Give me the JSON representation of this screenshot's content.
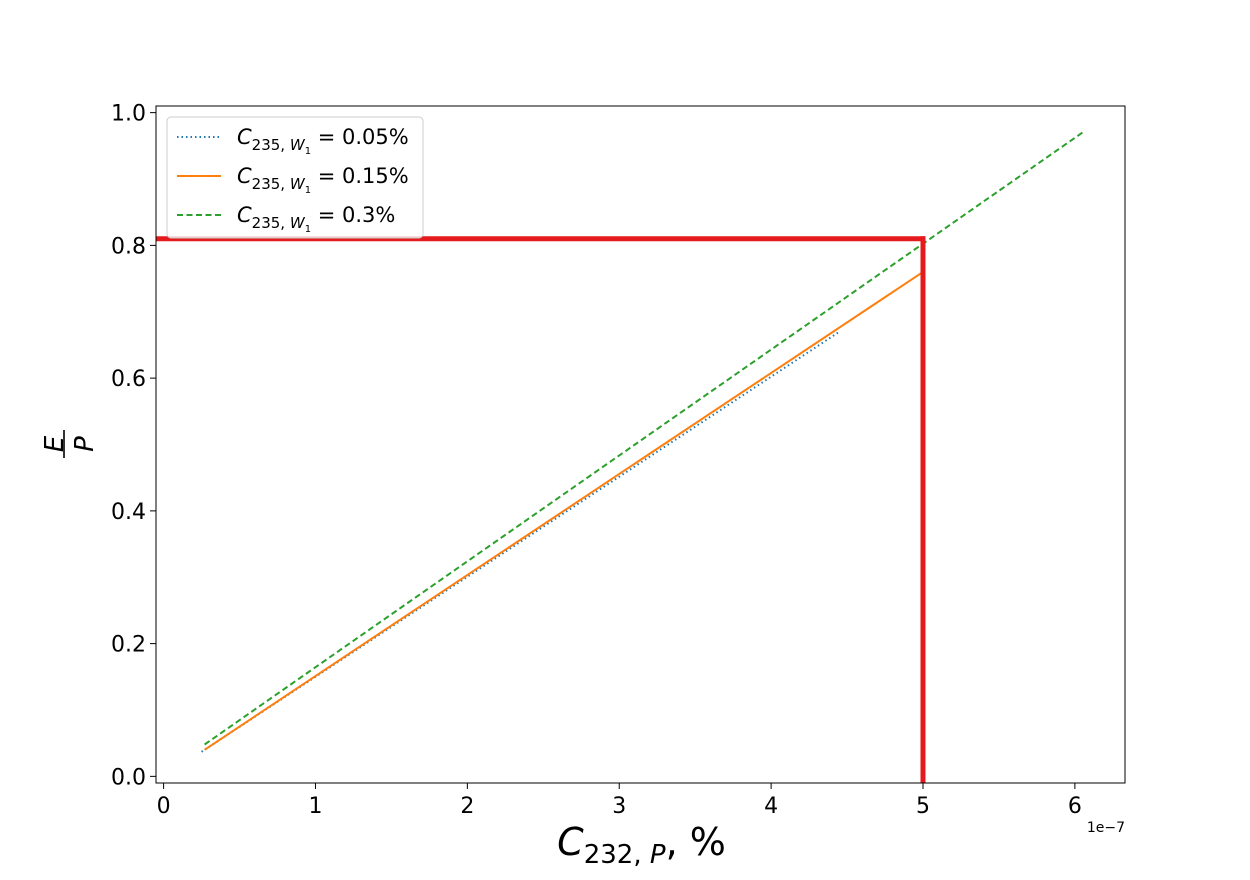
{
  "chart_data": {
    "type": "line",
    "xlabel": {
      "main": "C",
      "sub": "232, ",
      "sub_italic": "P",
      "suffix": ",  %"
    },
    "ylabel": {
      "numerator": "E",
      "denominator": "P"
    },
    "x_offset_label": "1e−7",
    "xlim": [
      -0.05,
      6.33
    ],
    "ylim": [
      -0.01,
      1.01
    ],
    "x_scale_factor": 1e-07,
    "xticks": [
      0,
      1,
      2,
      3,
      4,
      5,
      6
    ],
    "xtick_labels": [
      "0",
      "1",
      "2",
      "3",
      "4",
      "5",
      "6"
    ],
    "yticks": [
      0.0,
      0.2,
      0.4,
      0.6,
      0.8,
      1.0
    ],
    "ytick_labels": [
      "0.0",
      "0.2",
      "0.4",
      "0.6",
      "0.8",
      "1.0"
    ],
    "grid": false,
    "legend_placement": "upper-left",
    "series": [
      {
        "name": "C_{235,W_1} = 0.05%",
        "label_value": "0.05%",
        "color": "#1f77b4",
        "style": "dotted",
        "x": [
          0.25,
          4.45
        ],
        "y": [
          0.037,
          0.67
        ]
      },
      {
        "name": "C_{235,W_1} = 0.15%",
        "label_value": "0.15%",
        "color": "#ff7f0e",
        "style": "solid",
        "x": [
          0.27,
          5.0
        ],
        "y": [
          0.04,
          0.76
        ]
      },
      {
        "name": "C_{235,W_1} = 0.3%",
        "label_value": "0.3%",
        "color": "#2ca02c",
        "style": "dashed",
        "x": [
          0.27,
          6.05
        ],
        "y": [
          0.048,
          0.97
        ]
      }
    ],
    "annotations": [
      {
        "type": "hline",
        "y": 0.81,
        "x_from": -0.05,
        "x_to": 5.0,
        "color": "#e41a1c"
      },
      {
        "type": "vline",
        "x": 5.0,
        "y_from": -0.01,
        "y_to": 0.81,
        "color": "#e41a1c"
      }
    ]
  }
}
